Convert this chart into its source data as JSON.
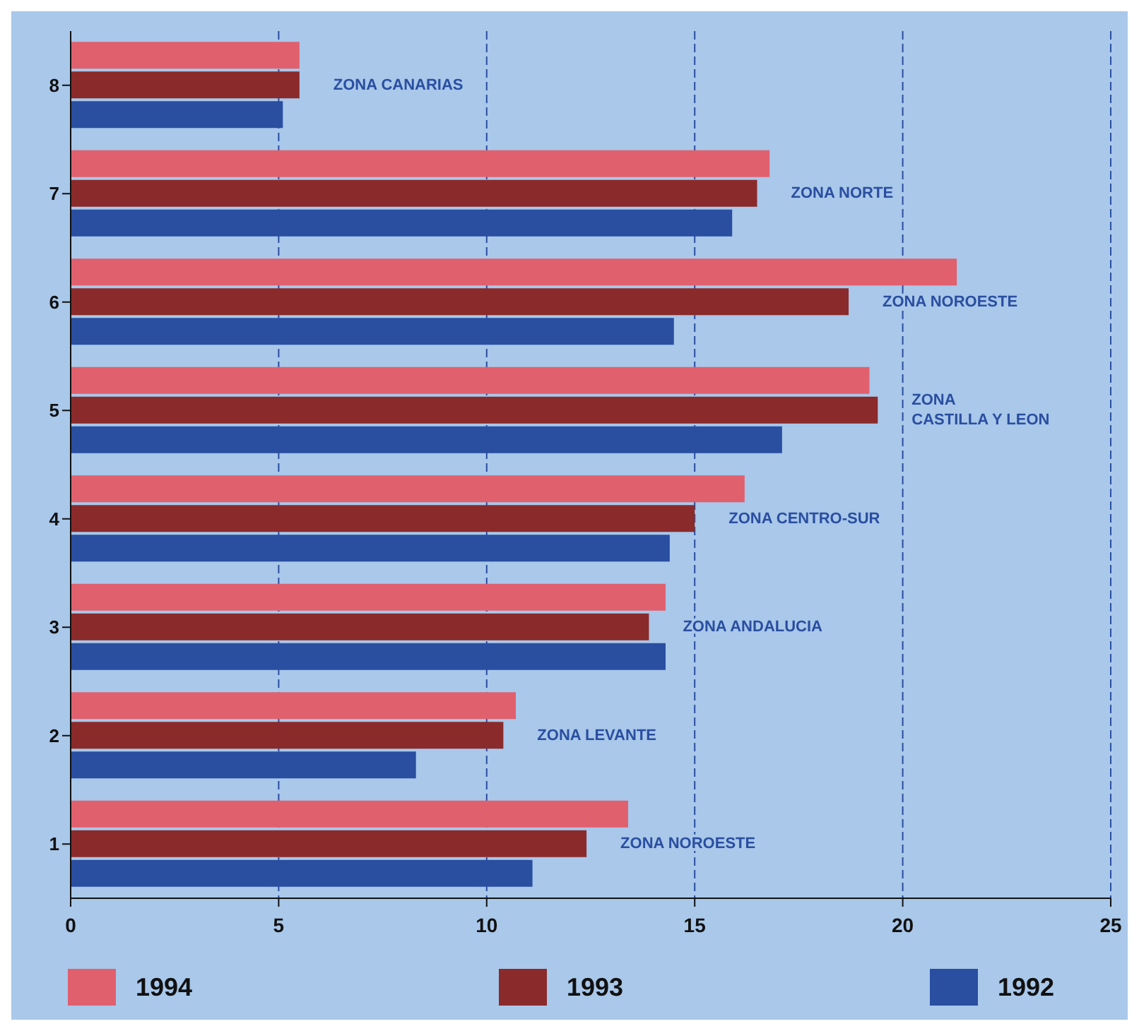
{
  "chart_data": {
    "type": "bar",
    "orientation": "horizontal",
    "categories": [
      "8",
      "7",
      "6",
      "5",
      "4",
      "3",
      "2",
      "1"
    ],
    "series": [
      {
        "name": "1994",
        "color": "#e0606e",
        "values": [
          5.5,
          16.8,
          21.3,
          19.2,
          16.2,
          14.3,
          10.7,
          13.4
        ]
      },
      {
        "name": "1993",
        "color": "#8b2a2a",
        "values": [
          5.5,
          16.5,
          18.7,
          19.4,
          15.0,
          13.9,
          10.4,
          12.4
        ]
      },
      {
        "name": "1992",
        "color": "#2a4ea0",
        "values": [
          5.1,
          15.9,
          14.5,
          17.1,
          14.4,
          14.3,
          8.3,
          11.1
        ]
      }
    ],
    "xlim": [
      0,
      25
    ],
    "xticks": [
      0,
      5,
      10,
      15,
      20,
      25
    ],
    "grid": "x",
    "legend": "bottom",
    "annotations": [
      "ZONA CANARIAS",
      "ZONA NORTE",
      "ZONA NOROESTE",
      "ZONA\nCASTILLA Y LEON",
      "ZONA CENTRO-SUR",
      "ZONA ANDALUCIA",
      "ZONA LEVANTE",
      "ZONA NOROESTE"
    ]
  }
}
